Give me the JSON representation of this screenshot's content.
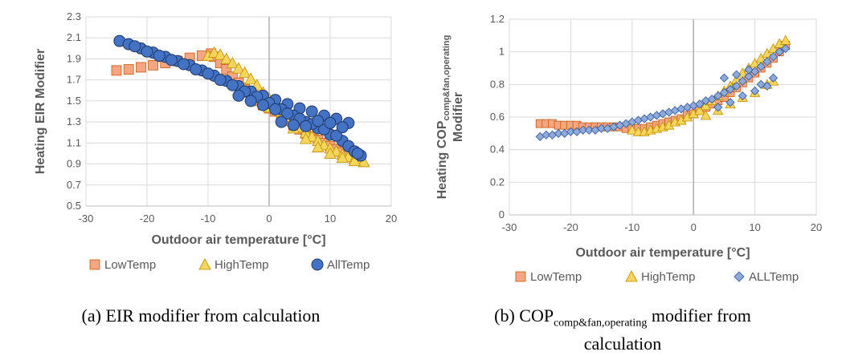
{
  "captions": {
    "a": "(a) EIR modifier from calculation",
    "b_prefix": "(b) COP",
    "b_sub": "comp&fan,operating",
    "b_suffix": " modifier from",
    "b_line2": "calculation"
  },
  "colors": {
    "LowTemp": "#f4a582",
    "HighTemp": "#f6d55c",
    "AllTemp": "#4472c4",
    "ALLTemp": "#8eaadb",
    "grid": "#d9d9d9",
    "axis": "#595959"
  },
  "chart_data": [
    {
      "type": "scatter",
      "title": "",
      "xlabel": "Outdoor air temperature [°C]",
      "ylabel": "Heating EIR Modifier",
      "xlim": [
        -30,
        20
      ],
      "ylim": [
        0.5,
        2.3
      ],
      "xticks": [
        -30,
        -20,
        -10,
        0,
        10,
        20
      ],
      "yticks": [
        0.5,
        0.7,
        0.9,
        1.1,
        1.3,
        1.5,
        1.7,
        1.9,
        2.1,
        2.3
      ],
      "ytick_labels": [
        "0.5",
        "0.7",
        "0.9",
        "1.1",
        "1.3",
        "1.5",
        "1.7",
        "1.9",
        "2.1",
        "2.3"
      ],
      "grid": true,
      "legend": "bottom",
      "series": [
        {
          "name": "LowTemp",
          "marker": "square",
          "points": [
            [
              -25,
              1.79
            ],
            [
              -23,
              1.8
            ],
            [
              -21,
              1.82
            ],
            [
              -19,
              1.84
            ],
            [
              -17,
              1.86
            ],
            [
              -15,
              1.88
            ],
            [
              -13,
              1.91
            ],
            [
              -11,
              1.93
            ],
            [
              -9.5,
              1.95
            ],
            [
              -9,
              1.92
            ],
            [
              -8,
              1.86
            ],
            [
              -7,
              1.8
            ],
            [
              -6,
              1.73
            ],
            [
              -5,
              1.67
            ],
            [
              -4,
              1.61
            ],
            [
              -3,
              1.55
            ],
            [
              -2,
              1.5
            ],
            [
              -1,
              1.46
            ],
            [
              0,
              1.43
            ],
            [
              1,
              1.4
            ],
            [
              2,
              1.36
            ],
            [
              3,
              1.31
            ],
            [
              4,
              1.27
            ],
            [
              5,
              1.23
            ],
            [
              6,
              1.19
            ],
            [
              7,
              1.16
            ],
            [
              8,
              1.13
            ],
            [
              9,
              1.1
            ],
            [
              10,
              1.07
            ],
            [
              11,
              1.04
            ],
            [
              12,
              1.01
            ],
            [
              13,
              0.98
            ],
            [
              14,
              0.95
            ],
            [
              15,
              0.93
            ]
          ]
        },
        {
          "name": "HighTemp",
          "marker": "triangle",
          "points": [
            [
              -10,
              1.93
            ],
            [
              -9,
              1.96
            ],
            [
              -8,
              1.94
            ],
            [
              -7,
              1.9
            ],
            [
              -6,
              1.86
            ],
            [
              -5,
              1.81
            ],
            [
              -4,
              1.77
            ],
            [
              -3,
              1.71
            ],
            [
              -2,
              1.65
            ],
            [
              -1,
              1.58
            ],
            [
              0,
              1.52
            ],
            [
              1,
              1.46
            ],
            [
              2,
              1.4
            ],
            [
              3,
              1.35
            ],
            [
              4,
              1.3
            ],
            [
              5,
              1.25
            ],
            [
              6,
              1.2
            ],
            [
              7,
              1.16
            ],
            [
              8,
              1.12
            ],
            [
              9,
              1.08
            ],
            [
              10,
              1.05
            ],
            [
              11,
              1.02
            ],
            [
              12,
              0.99
            ],
            [
              13,
              0.97
            ],
            [
              14,
              0.95
            ],
            [
              15,
              0.93
            ],
            [
              15.5,
              0.92
            ],
            [
              -4,
              1.62
            ],
            [
              -2,
              1.52
            ],
            [
              0,
              1.44
            ],
            [
              2,
              1.34
            ],
            [
              4,
              1.24
            ],
            [
              6,
              1.14
            ],
            [
              8,
              1.06
            ],
            [
              10,
              1.0
            ],
            [
              12,
              0.96
            ],
            [
              14,
              0.93
            ]
          ]
        },
        {
          "name": "AllTemp",
          "marker": "circle",
          "points": [
            [
              -24.5,
              2.07
            ],
            [
              -23,
              2.04
            ],
            [
              -21,
              2.0
            ],
            [
              -19,
              1.96
            ],
            [
              -17,
              1.92
            ],
            [
              -15,
              1.88
            ],
            [
              -13,
              1.84
            ],
            [
              -11,
              1.79
            ],
            [
              -9,
              1.74
            ],
            [
              -7,
              1.69
            ],
            [
              -5,
              1.64
            ],
            [
              -3,
              1.59
            ],
            [
              -1,
              1.55
            ],
            [
              1,
              1.51
            ],
            [
              3,
              1.47
            ],
            [
              5,
              1.43
            ],
            [
              7,
              1.4
            ],
            [
              9,
              1.36
            ],
            [
              11,
              1.33
            ],
            [
              13,
              1.29
            ],
            [
              -8,
              1.7
            ],
            [
              -6,
              1.65
            ],
            [
              -4,
              1.59
            ],
            [
              -2,
              1.54
            ],
            [
              0,
              1.48
            ],
            [
              2,
              1.42
            ],
            [
              4,
              1.36
            ],
            [
              6,
              1.3
            ],
            [
              8,
              1.24
            ],
            [
              10,
              1.18
            ],
            [
              12,
              1.12
            ],
            [
              13,
              1.07
            ],
            [
              14,
              1.02
            ],
            [
              15,
              0.98
            ],
            [
              -5,
              1.55
            ],
            [
              -3,
              1.5
            ],
            [
              -1,
              1.46
            ],
            [
              1,
              1.42
            ],
            [
              3,
              1.38
            ],
            [
              5,
              1.33
            ],
            [
              7,
              1.28
            ],
            [
              9,
              1.23
            ],
            [
              11,
              1.17
            ],
            [
              14.5,
              1.0
            ],
            [
              2,
              1.3
            ],
            [
              4,
              1.27
            ],
            [
              6,
              1.26
            ],
            [
              8,
              1.31
            ],
            [
              10,
              1.29
            ],
            [
              12,
              1.25
            ],
            [
              -10,
              1.76
            ],
            [
              -12,
              1.8
            ],
            [
              -14,
              1.85
            ],
            [
              -16,
              1.89
            ],
            [
              -18,
              1.93
            ],
            [
              -20,
              1.97
            ],
            [
              -22,
              2.02
            ]
          ]
        }
      ]
    },
    {
      "type": "scatter",
      "title": "",
      "xlabel": "Outdoor air temperature [°C]",
      "ylabel_main": "Heating COP",
      "ylabel_sub": "comp&fan,operating",
      "ylabel_line2": "Modifier",
      "xlim": [
        -30,
        20
      ],
      "ylim": [
        0,
        1.2
      ],
      "xticks": [
        -30,
        -20,
        -10,
        0,
        10,
        20
      ],
      "yticks": [
        0,
        0.2,
        0.4,
        0.6,
        0.8,
        1.0,
        1.2
      ],
      "ytick_labels": [
        "0",
        "0.2",
        "0.4",
        "0.6",
        "0.8",
        "1",
        "1.2"
      ],
      "grid": true,
      "legend": "bottom",
      "series": [
        {
          "name": "LowTemp",
          "marker": "square",
          "points": [
            [
              -25,
              0.56
            ],
            [
              -24,
              0.56
            ],
            [
              -23,
              0.56
            ],
            [
              -22,
              0.55
            ],
            [
              -21,
              0.55
            ],
            [
              -20,
              0.55
            ],
            [
              -19,
              0.55
            ],
            [
              -18,
              0.54
            ],
            [
              -17,
              0.54
            ],
            [
              -16,
              0.54
            ],
            [
              -15,
              0.54
            ],
            [
              -14,
              0.54
            ],
            [
              -13,
              0.54
            ],
            [
              -12,
              0.54
            ],
            [
              -11,
              0.53
            ],
            [
              -10,
              0.53
            ],
            [
              -9,
              0.53
            ],
            [
              -8,
              0.53
            ],
            [
              -7,
              0.54
            ],
            [
              -6,
              0.55
            ],
            [
              -5,
              0.56
            ],
            [
              -4,
              0.57
            ],
            [
              -3,
              0.58
            ],
            [
              -2,
              0.59
            ],
            [
              -1,
              0.61
            ],
            [
              0,
              0.62
            ],
            [
              1,
              0.64
            ],
            [
              2,
              0.66
            ],
            [
              3,
              0.68
            ],
            [
              4,
              0.7
            ],
            [
              5,
              0.72
            ],
            [
              6,
              0.75
            ],
            [
              7,
              0.78
            ],
            [
              8,
              0.81
            ],
            [
              9,
              0.84
            ],
            [
              10,
              0.87
            ],
            [
              11,
              0.9
            ],
            [
              12,
              0.93
            ],
            [
              13,
              0.96
            ],
            [
              14,
              1.0
            ],
            [
              15,
              1.04
            ]
          ]
        },
        {
          "name": "HighTemp",
          "marker": "triangle",
          "points": [
            [
              -10,
              0.52
            ],
            [
              -9,
              0.51
            ],
            [
              -8,
              0.51
            ],
            [
              -7,
              0.52
            ],
            [
              -6,
              0.53
            ],
            [
              -5,
              0.54
            ],
            [
              -4,
              0.55
            ],
            [
              -3,
              0.57
            ],
            [
              -2,
              0.58
            ],
            [
              -1,
              0.6
            ],
            [
              0,
              0.62
            ],
            [
              1,
              0.64
            ],
            [
              2,
              0.67
            ],
            [
              3,
              0.7
            ],
            [
              4,
              0.73
            ],
            [
              5,
              0.76
            ],
            [
              6,
              0.79
            ],
            [
              7,
              0.83
            ],
            [
              8,
              0.87
            ],
            [
              9,
              0.9
            ],
            [
              10,
              0.93
            ],
            [
              11,
              0.96
            ],
            [
              12,
              0.99
            ],
            [
              13,
              1.02
            ],
            [
              14,
              1.05
            ],
            [
              15,
              1.07
            ],
            [
              2,
              0.61
            ],
            [
              4,
              0.64
            ],
            [
              6,
              0.68
            ],
            [
              8,
              0.72
            ],
            [
              10,
              0.75
            ],
            [
              12,
              0.8
            ],
            [
              13,
              0.82
            ]
          ]
        },
        {
          "name": "ALLTemp",
          "marker": "diamond",
          "points": [
            [
              -25,
              0.48
            ],
            [
              -24,
              0.49
            ],
            [
              -23,
              0.49
            ],
            [
              -22,
              0.5
            ],
            [
              -21,
              0.5
            ],
            [
              -20,
              0.51
            ],
            [
              -19,
              0.51
            ],
            [
              -18,
              0.52
            ],
            [
              -17,
              0.52
            ],
            [
              -16,
              0.52
            ],
            [
              -15,
              0.53
            ],
            [
              -14,
              0.53
            ],
            [
              -13,
              0.54
            ],
            [
              -12,
              0.55
            ],
            [
              -11,
              0.56
            ],
            [
              -10,
              0.57
            ],
            [
              -9,
              0.58
            ],
            [
              -8,
              0.59
            ],
            [
              -7,
              0.6
            ],
            [
              -6,
              0.61
            ],
            [
              -5,
              0.62
            ],
            [
              -4,
              0.63
            ],
            [
              -3,
              0.64
            ],
            [
              -2,
              0.65
            ],
            [
              -1,
              0.66
            ],
            [
              0,
              0.67
            ],
            [
              1,
              0.68
            ],
            [
              2,
              0.7
            ],
            [
              3,
              0.71
            ],
            [
              4,
              0.73
            ],
            [
              5,
              0.75
            ],
            [
              6,
              0.77
            ],
            [
              7,
              0.79
            ],
            [
              8,
              0.82
            ],
            [
              9,
              0.85
            ],
            [
              10,
              0.88
            ],
            [
              11,
              0.91
            ],
            [
              12,
              0.94
            ],
            [
              13,
              0.97
            ],
            [
              14,
              1.0
            ],
            [
              15,
              1.02
            ],
            [
              4,
              0.66
            ],
            [
              6,
              0.69
            ],
            [
              8,
              0.73
            ],
            [
              10,
              0.76
            ],
            [
              12,
              0.79
            ],
            [
              5,
              0.84
            ],
            [
              7,
              0.86
            ],
            [
              9,
              0.89
            ],
            [
              11,
              0.8
            ],
            [
              13,
              0.84
            ]
          ]
        }
      ]
    }
  ]
}
